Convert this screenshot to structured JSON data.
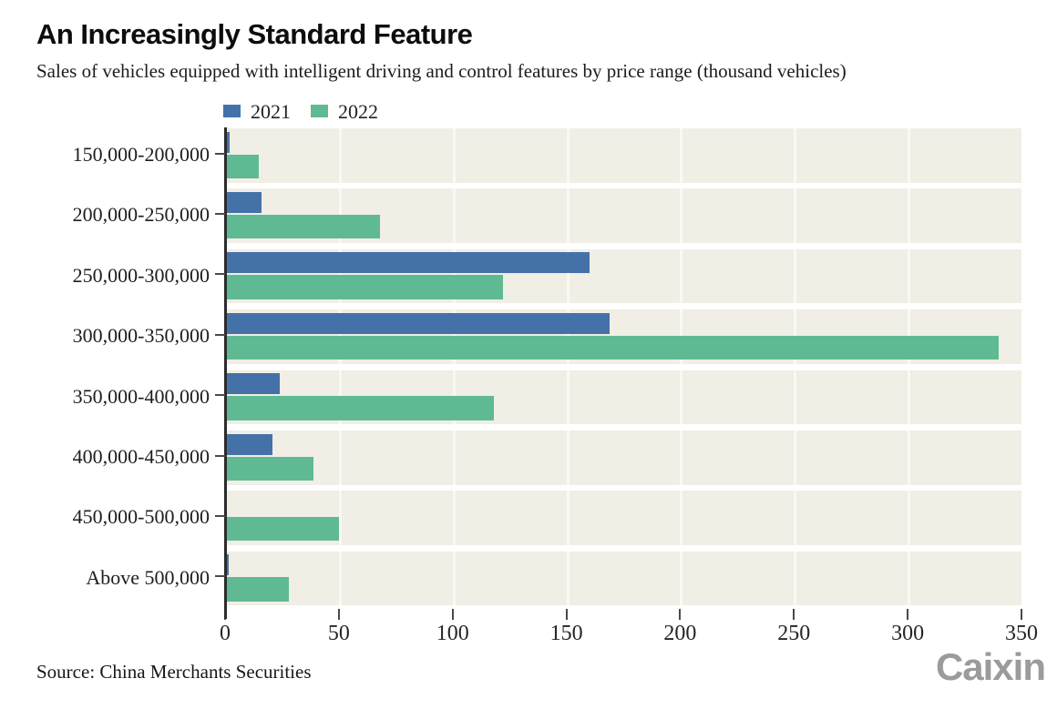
{
  "chart_data": {
    "type": "bar",
    "orientation": "horizontal",
    "title": "An Increasingly Standard Feature",
    "subtitle": "Sales of vehicles equipped with intelligent driving and control features by price range (thousand vehicles)",
    "unit": "thousand vehicles",
    "categories": [
      "150,000-200,000",
      "200,000-250,000",
      "250,000-300,000",
      "300,000-350,000",
      "350,000-400,000",
      "400,000-450,000",
      "450,000-500,000",
      "Above 500,000"
    ],
    "series": [
      {
        "name": "2021",
        "color": "#4472a8",
        "values": [
          2,
          16,
          160,
          169,
          24,
          21,
          0,
          1.5
        ]
      },
      {
        "name": "2022",
        "color": "#5fba94",
        "values": [
          15,
          68,
          122,
          340,
          118,
          39,
          50,
          28
        ]
      }
    ],
    "xlim": [
      0,
      350
    ],
    "x_ticks": [
      0,
      50,
      100,
      150,
      200,
      250,
      300,
      350
    ],
    "legend_position": "top-left above plot",
    "plot_background": "#f0eee5",
    "grid": "subtle white vertical lines every 50 units; white gaps separate category bands"
  },
  "footer": {
    "source": "Source: China Merchants Securities",
    "logo": "Caixin"
  }
}
